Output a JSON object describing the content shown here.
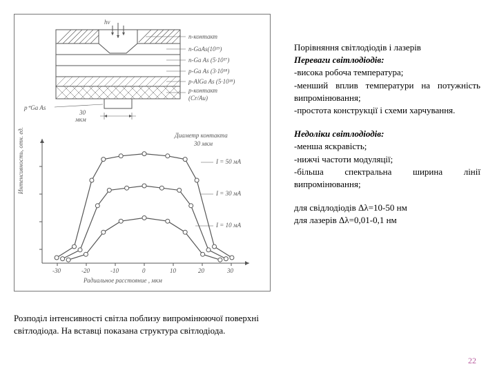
{
  "figure": {
    "type": "composite",
    "background": "#ffffff",
    "stroke": "#555555",
    "inset_diagram": {
      "layers": [
        {
          "label": "n-контакт",
          "hatch": "diag-right"
        },
        {
          "label": "n-GaAs(10^19)",
          "hatch": "none"
        },
        {
          "label": "n-Ga As (5·10^17)",
          "hatch": "none"
        },
        {
          "label": "p-Ga As (3·10^18)",
          "hatch": "none"
        },
        {
          "label": "p-AlGa As (5·10^18)",
          "hatch": "diag-left"
        },
        {
          "label": "p-контакт\n(Cr/Au)",
          "hatch": "cross"
        }
      ],
      "left_label": "p+Ga As",
      "top_label": "hν",
      "gap_label": "30\nмкм"
    },
    "chart": {
      "type": "line",
      "title_side": "Диаметр контакта\n30 мкм",
      "ylabel": "Интенсивность, отн. ед.",
      "xlabel": "Радиальное расстояние , мкм",
      "xlim": [
        -35,
        35
      ],
      "xtick_step": 10,
      "xticks": [
        -30,
        -20,
        -10,
        0,
        10,
        20,
        30
      ],
      "series": [
        {
          "label": "I = 50 мА",
          "marker": "circle",
          "points": [
            [
              -30,
              0.05
            ],
            [
              -24,
              0.15
            ],
            [
              -18,
              0.75
            ],
            [
              -14,
              0.94
            ],
            [
              -8,
              0.97
            ],
            [
              0,
              0.99
            ],
            [
              8,
              0.97
            ],
            [
              14,
              0.94
            ],
            [
              18,
              0.75
            ],
            [
              24,
              0.15
            ],
            [
              30,
              0.05
            ]
          ]
        },
        {
          "label": "I = 30 мА",
          "marker": "circle",
          "points": [
            [
              -28,
              0.04
            ],
            [
              -22,
              0.12
            ],
            [
              -16,
              0.52
            ],
            [
              -12,
              0.66
            ],
            [
              -6,
              0.68
            ],
            [
              0,
              0.7
            ],
            [
              6,
              0.68
            ],
            [
              12,
              0.66
            ],
            [
              16,
              0.52
            ],
            [
              22,
              0.12
            ],
            [
              28,
              0.04
            ]
          ]
        },
        {
          "label": "I = 10 мА",
          "marker": "circle",
          "points": [
            [
              -26,
              0.03
            ],
            [
              -20,
              0.08
            ],
            [
              -14,
              0.28
            ],
            [
              -8,
              0.38
            ],
            [
              0,
              0.41
            ],
            [
              8,
              0.38
            ],
            [
              14,
              0.28
            ],
            [
              20,
              0.08
            ],
            [
              26,
              0.03
            ]
          ]
        }
      ],
      "line_color": "#555555",
      "marker_size": 3,
      "grid": false
    }
  },
  "caption": "Розподіл інтенсивності світла поблизу випромінюючої поверхні світлодіода. На вставці показана структура світлодіода.",
  "right": {
    "title": "Порівняння світлодіодів і лазерів",
    "advantages": {
      "heading": "Переваги світлодіодів:",
      "items": [
        "-висока робоча температура;",
        "-менший вплив температури на потужність випромінювання;",
        "-простота конструкції і схеми харчування."
      ]
    },
    "disadvantages": {
      "heading": "Недоліки світлодіодів:",
      "items": [
        "-менша яскравість;",
        "-нижчі частоти модуляції;",
        "-більша спектральна ширина лінії випромінювання;"
      ]
    },
    "footer": [
      "для свідлодіодів Δλ=10-50 нм",
      "для лазерів Δλ=0,01-0,1 нм"
    ]
  },
  "page_number": "22"
}
